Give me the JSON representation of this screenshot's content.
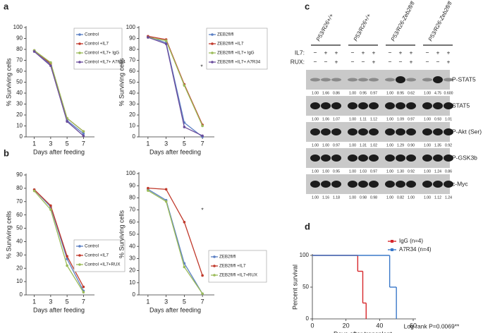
{
  "panel_labels": [
    "a",
    "b",
    "c",
    "d"
  ],
  "chart_data": [
    {
      "type": "line",
      "ylabel": "% Surviving cells",
      "xlabel": "Days after feeding",
      "x": [
        1,
        3,
        5,
        7
      ],
      "xlim": [
        0,
        8
      ],
      "xticks": [
        1,
        3,
        5,
        7
      ],
      "ylim": [
        0,
        100
      ],
      "yticks": [
        0,
        10,
        20,
        30,
        40,
        50,
        60,
        70,
        80,
        90,
        100
      ],
      "series": [
        {
          "name": "Control",
          "color": "#5b7fc4",
          "values": [
            79,
            66,
            15,
            3
          ]
        },
        {
          "name": "Control +IL7",
          "color": "#c0392b",
          "values": [
            79,
            67,
            17,
            5
          ]
        },
        {
          "name": "Control +IL7+ IgG",
          "color": "#9bbb59",
          "values": [
            79,
            68,
            17,
            5
          ]
        },
        {
          "name": "Control +IL7+ A7R34",
          "color": "#6a4c9c",
          "values": [
            78,
            65,
            14,
            1
          ]
        }
      ]
    },
    {
      "type": "line",
      "ylabel": "% Surviving cells",
      "xlabel": "Days after feeding",
      "annotation": "*",
      "x": [
        1,
        3,
        5,
        7
      ],
      "xlim": [
        0,
        8
      ],
      "xticks": [
        1,
        3,
        5,
        7
      ],
      "ylim": [
        0,
        100
      ],
      "yticks": [
        0,
        10,
        20,
        30,
        40,
        50,
        60,
        70,
        80,
        90,
        100
      ],
      "series": [
        {
          "name": "ZEB2fl/fl",
          "color": "#5b7fc4",
          "values": [
            92,
            86,
            13,
            0
          ]
        },
        {
          "name": "ZEB2fl/fl +IL7",
          "color": "#c0392b",
          "values": [
            92,
            89,
            48,
            11
          ]
        },
        {
          "name": "ZEB2fl/fl +IL7+ IgG",
          "color": "#9bbb59",
          "values": [
            91,
            88,
            47,
            10
          ]
        },
        {
          "name": "ZEB2fl/fl +IL7+ A7R34",
          "color": "#6a4c9c",
          "values": [
            91,
            85,
            9,
            1
          ]
        }
      ]
    },
    {
      "type": "line",
      "ylabel": "% Surviving cells",
      "xlabel": "Days after feeding",
      "x": [
        1,
        3,
        5,
        7
      ],
      "xlim": [
        0,
        8
      ],
      "xticks": [
        1,
        3,
        5,
        7
      ],
      "ylim": [
        0,
        90
      ],
      "yticks": [
        0,
        10,
        20,
        30,
        40,
        50,
        60,
        70,
        80,
        90
      ],
      "series": [
        {
          "name": "Control",
          "color": "#5b7fc4",
          "values": [
            79,
            66,
            27,
            3
          ]
        },
        {
          "name": "Control +IL7",
          "color": "#c0392b",
          "values": [
            79,
            67,
            29,
            6
          ]
        },
        {
          "name": "Control +IL7+RUX",
          "color": "#9bbb59",
          "values": [
            78,
            64,
            22,
            2
          ]
        }
      ]
    },
    {
      "type": "line",
      "ylabel": "% Surviving cells",
      "xlabel": "Days after feeding",
      "annotation": "*",
      "x": [
        1,
        3,
        5,
        7
      ],
      "xlim": [
        0,
        8
      ],
      "xticks": [
        1,
        3,
        5,
        7
      ],
      "ylim": [
        0,
        100
      ],
      "yticks": [
        0,
        10,
        20,
        30,
        40,
        50,
        60,
        70,
        80,
        90,
        100
      ],
      "series": [
        {
          "name": "ZEB2fl/fl",
          "color": "#5b7fc4",
          "values": [
            87,
            78,
            26,
            1
          ]
        },
        {
          "name": "ZEB2fl/fl +IL7",
          "color": "#c0392b",
          "values": [
            88,
            87,
            60,
            16
          ]
        },
        {
          "name": "ZEB2fl/fl +IL7+RUX",
          "color": "#9bbb59",
          "values": [
            86,
            77,
            23,
            1
          ]
        }
      ]
    },
    {
      "type": "step",
      "ylabel": "Percent survival",
      "xlabel": "Days after transplant",
      "annotation": "Log rank P=0.0069**",
      "xlim": [
        0,
        60
      ],
      "xticks": [
        0,
        20,
        40,
        60
      ],
      "ylim": [
        0,
        100
      ],
      "yticks": [
        0,
        50,
        100
      ],
      "series": [
        {
          "name": "IgG (n=4)",
          "color": "#d7262b",
          "x": [
            0,
            27,
            30,
            32
          ],
          "values": [
            100,
            75,
            25,
            0
          ]
        },
        {
          "name": "A7R34 (n=4)",
          "color": "#3a78c9",
          "x": [
            0,
            46,
            50
          ],
          "values": [
            100,
            50,
            0
          ]
        }
      ]
    }
  ],
  "blot": {
    "columns": [
      "P53/R26+/+",
      "P53/R26+/+",
      "P53/R26-Zeb2fl/fl",
      "P53/R26-Zeb2fl/fl"
    ],
    "treatments": [
      {
        "label": "IL7:",
        "signs": [
          "−",
          "+",
          "+",
          "−",
          "+",
          "+",
          "−",
          "+",
          "+",
          "−",
          "+",
          "+"
        ]
      },
      {
        "label": "RUX:",
        "signs": [
          "−",
          "−",
          "+",
          "−",
          "−",
          "+",
          "−",
          "−",
          "+",
          "−",
          "−",
          "+"
        ]
      }
    ],
    "highlight_color": "#e8412c",
    "rows": [
      {
        "label": "P-STAT5",
        "values": [
          "1.00",
          "1.66",
          "0.86",
          "1.00",
          "0.95",
          "0.97",
          "1.00",
          "8.95",
          "0.62",
          "1.00",
          "4.75",
          "0.600"
        ],
        "highlighted": [
          7,
          10
        ]
      },
      {
        "label": "STAT5",
        "values": [
          "1.00",
          "1.06",
          "1.07",
          "1.00",
          "1.11",
          "1.12",
          "1.00",
          "1.09",
          "0.97",
          "1.00",
          "0.93",
          "1.01"
        ],
        "highlighted": []
      },
      {
        "label": "P-Akt (Ser)",
        "values": [
          "1.00",
          "1.00",
          "0.97",
          "1.00",
          "1.31",
          "1.02",
          "1.00",
          "1.29",
          "0.90",
          "1.00",
          "1.35",
          "0.92"
        ],
        "highlighted": [
          7,
          10
        ]
      },
      {
        "label": "P-GSK3b",
        "values": [
          "1.00",
          "1.00",
          "0.95",
          "1.00",
          "1.03",
          "0.97",
          "1.00",
          "1.30",
          "0.92",
          "1.00",
          "1.24",
          "0.86"
        ],
        "highlighted": [
          7,
          10
        ]
      },
      {
        "label": "c-Myc",
        "values": [
          "1.00",
          "1.16",
          "1.18",
          "1.00",
          "0.98",
          "0.98",
          "1.00",
          "0.82",
          "1.00",
          "1.00",
          "1.12",
          "1.24"
        ],
        "highlighted": []
      }
    ]
  }
}
